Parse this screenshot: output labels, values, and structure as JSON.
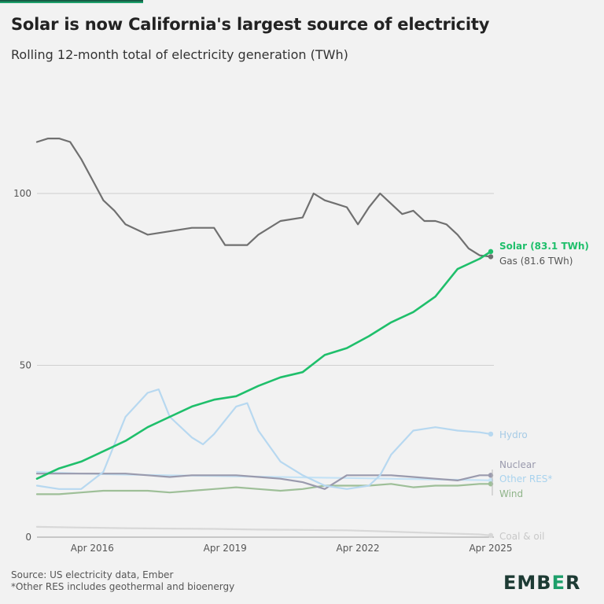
{
  "title": "Solar is now California's largest source of electricity",
  "subtitle": "Rolling 12-month total of electricity generation (TWh)",
  "source_lines": [
    "Source: US electricity data, Ember",
    "*Other RES includes geothermal and bioenergy"
  ],
  "logo": {
    "prefix": "EMB",
    "middle": "E",
    "suffix": "R"
  },
  "colors": {
    "accent": "#1d9f6a",
    "solar": "#1fbf6b",
    "gas": "#707070",
    "hydro": "#b7d8f0",
    "nuclear": "#9a9aad",
    "other_res": "#c4e2f5",
    "wind": "#9ebf98",
    "coal_oil": "#d8d8d8"
  },
  "chart_data": {
    "type": "line",
    "title": "Solar is now California's largest source of electricity",
    "subtitle": "Rolling 12-month total of electricity generation (TWh)",
    "xlabel": "",
    "ylabel": "",
    "x_ticks": [
      "Apr 2016",
      "Apr 2019",
      "Apr 2022",
      "Apr 2025"
    ],
    "y_ticks": [
      0,
      50,
      100
    ],
    "xlim": [
      "2015-01",
      "2025-04"
    ],
    "ylim": [
      0,
      120
    ],
    "grid": true,
    "legend": "end-of-line labels",
    "series": [
      {
        "name": "Solar (83.1 TWh)",
        "key": "solar",
        "x": [
          "2015-01",
          "2015-07",
          "2016-01",
          "2016-07",
          "2017-01",
          "2017-07",
          "2018-01",
          "2018-07",
          "2019-01",
          "2019-07",
          "2020-01",
          "2020-07",
          "2021-01",
          "2021-07",
          "2022-01",
          "2022-07",
          "2023-01",
          "2023-07",
          "2024-01",
          "2024-07",
          "2025-01",
          "2025-04"
        ],
        "values": [
          17,
          20,
          22,
          25,
          28,
          32,
          35,
          38,
          40,
          41,
          44,
          46.5,
          48,
          53,
          55,
          58.5,
          62.5,
          65.5,
          70,
          78,
          81,
          83.1
        ]
      },
      {
        "name": "Gas (81.6 TWh)",
        "key": "gas",
        "x": [
          "2015-01",
          "2015-04",
          "2015-07",
          "2015-10",
          "2016-01",
          "2016-04",
          "2016-07",
          "2016-10",
          "2017-01",
          "2017-07",
          "2018-01",
          "2018-07",
          "2019-01",
          "2019-04",
          "2019-07",
          "2019-10",
          "2020-01",
          "2020-07",
          "2021-01",
          "2021-04",
          "2021-07",
          "2021-10",
          "2022-01",
          "2022-04",
          "2022-07",
          "2022-10",
          "2023-01",
          "2023-04",
          "2023-07",
          "2023-10",
          "2024-01",
          "2024-04",
          "2024-07",
          "2024-10",
          "2025-01",
          "2025-04"
        ],
        "values": [
          115,
          116,
          116,
          115,
          110,
          104,
          98,
          95,
          91,
          88,
          89,
          90,
          90,
          85,
          85,
          85,
          88,
          92,
          93,
          100,
          98,
          97,
          96,
          91,
          96,
          100,
          97,
          94,
          95,
          92,
          92,
          91,
          88,
          84,
          82,
          81.6
        ]
      },
      {
        "name": "Hydro",
        "key": "hydro",
        "x": [
          "2015-01",
          "2015-07",
          "2016-01",
          "2016-07",
          "2016-10",
          "2017-01",
          "2017-07",
          "2017-10",
          "2018-01",
          "2018-07",
          "2018-10",
          "2019-01",
          "2019-07",
          "2019-10",
          "2020-01",
          "2020-07",
          "2021-01",
          "2021-07",
          "2022-01",
          "2022-07",
          "2022-10",
          "2023-01",
          "2023-07",
          "2024-01",
          "2024-07",
          "2025-01",
          "2025-04"
        ],
        "values": [
          15,
          14,
          14,
          19,
          27,
          35,
          42,
          43,
          35,
          29,
          27,
          30,
          38,
          39,
          31,
          22,
          18,
          15,
          14,
          15,
          18,
          24,
          31,
          32,
          31,
          30.5,
          30
        ]
      },
      {
        "name": "Nuclear",
        "key": "nuclear",
        "x": [
          "2015-01",
          "2016-01",
          "2016-07",
          "2017-01",
          "2017-07",
          "2018-01",
          "2018-07",
          "2019-01",
          "2019-07",
          "2020-01",
          "2020-07",
          "2021-01",
          "2021-07",
          "2022-01",
          "2022-07",
          "2023-01",
          "2023-07",
          "2024-01",
          "2024-07",
          "2025-01",
          "2025-04"
        ],
        "values": [
          18.5,
          18.5,
          18.5,
          18.5,
          18,
          17.5,
          18,
          18,
          18,
          17.5,
          17,
          16,
          14,
          18,
          18,
          18,
          17.5,
          17,
          16.5,
          18,
          18
        ]
      },
      {
        "name": "Other RES*",
        "key": "other_res",
        "x": [
          "2015-01",
          "2016-01",
          "2017-01",
          "2018-01",
          "2019-01",
          "2020-01",
          "2021-01",
          "2022-01",
          "2023-01",
          "2024-01",
          "2025-01",
          "2025-04"
        ],
        "values": [
          19,
          18.5,
          18.2,
          18,
          17.8,
          17.6,
          17.4,
          17.2,
          17,
          16.8,
          16.6,
          16.5
        ]
      },
      {
        "name": "Wind",
        "key": "wind",
        "x": [
          "2015-01",
          "2015-07",
          "2016-01",
          "2016-07",
          "2017-01",
          "2017-07",
          "2018-01",
          "2018-07",
          "2019-01",
          "2019-07",
          "2020-01",
          "2020-07",
          "2021-01",
          "2021-07",
          "2022-01",
          "2022-07",
          "2023-01",
          "2023-07",
          "2024-01",
          "2024-07",
          "2025-01",
          "2025-04"
        ],
        "values": [
          12.5,
          12.5,
          13,
          13.5,
          13.5,
          13.5,
          13,
          13.5,
          14,
          14.5,
          14,
          13.5,
          14,
          15,
          15,
          15,
          15.5,
          14.5,
          15,
          15,
          15.5,
          15.5
        ]
      },
      {
        "name": "Coal & oil",
        "key": "coal_oil",
        "x": [
          "2015-01",
          "2016-01",
          "2017-01",
          "2018-01",
          "2019-01",
          "2020-01",
          "2021-01",
          "2022-01",
          "2023-01",
          "2024-01",
          "2025-01",
          "2025-04"
        ],
        "values": [
          3,
          2.8,
          2.6,
          2.5,
          2.4,
          2.2,
          2.1,
          2,
          1.6,
          1.2,
          0.8,
          0.5
        ]
      }
    ]
  }
}
